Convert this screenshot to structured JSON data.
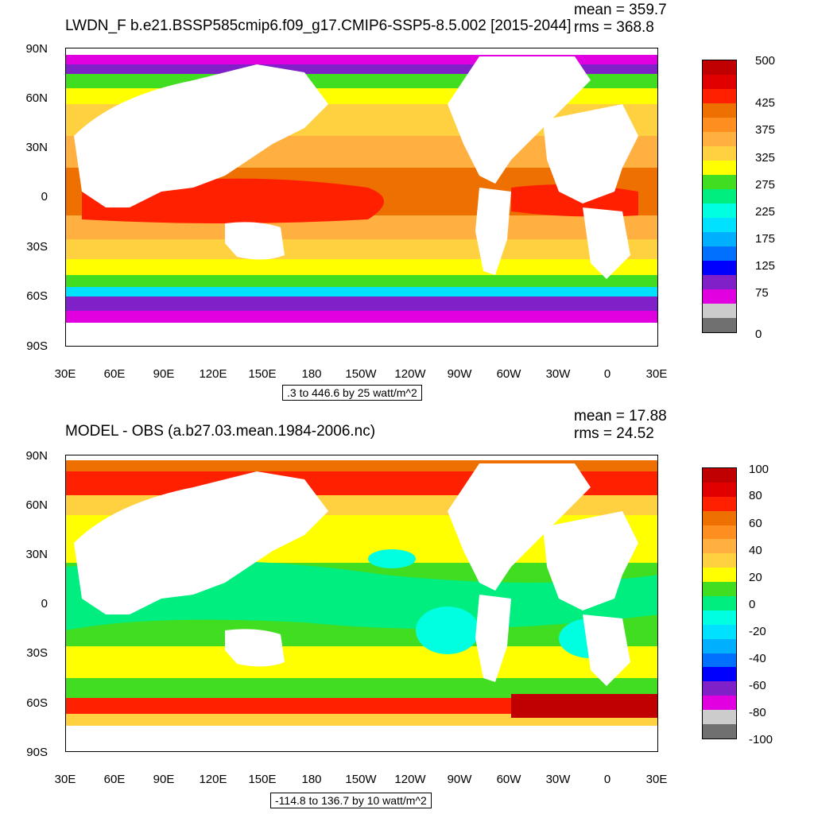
{
  "panels": [
    {
      "title": "LWDN_F b.e21.BSSP585cmip6.f09_g17.CMIP6-SSP5-8.5.002 [2015-2044]",
      "mean": "mean = 359.7",
      "rms": "rms = 368.8",
      "range_label": ".3 to 446.6 by 25 watt/m^2",
      "colorbar_labels": [
        "500",
        "425",
        "375",
        "325",
        "275",
        "225",
        "175",
        "125",
        "75",
        "0"
      ],
      "colorbar_colors": [
        "#c00000",
        "#e00000",
        "#ff2000",
        "#ee7000",
        "#ff8e20",
        "#ffb040",
        "#ffd040",
        "#ffff00",
        "#40dd20",
        "#00ee80",
        "#00ffe0",
        "#00e0ff",
        "#00b0ff",
        "#0070ff",
        "#0000ff",
        "#8020c8",
        "#e000e0",
        "#cccccc",
        "#707070"
      ]
    },
    {
      "title": "MODEL - OBS (a.b27.03.mean.1984-2006.nc)",
      "mean": "mean = 17.88",
      "rms": "rms = 24.52",
      "range_label": "-114.8 to 136.7 by 10 watt/m^2",
      "colorbar_labels": [
        "100",
        "80",
        "60",
        "40",
        "20",
        "0",
        "-20",
        "-40",
        "-60",
        "-80",
        "-100"
      ],
      "colorbar_colors": [
        "#c00000",
        "#e00000",
        "#ff2000",
        "#ee7000",
        "#ff8e20",
        "#ffb040",
        "#ffd040",
        "#ffff00",
        "#40dd20",
        "#00ee80",
        "#00ffe0",
        "#00e0ff",
        "#00b0ff",
        "#0070ff",
        "#0000ff",
        "#8020c8",
        "#e000e0",
        "#cccccc",
        "#707070"
      ]
    }
  ],
  "lat_labels": [
    "90N",
    "60N",
    "30N",
    "0",
    "30S",
    "60S",
    "90S"
  ],
  "lon_labels": [
    "30E",
    "60E",
    "90E",
    "120E",
    "150E",
    "180",
    "150W",
    "120W",
    "90W",
    "60W",
    "30W",
    "0",
    "30E"
  ],
  "colors": {
    "land": "#ffffff",
    "frame": "#000000"
  }
}
